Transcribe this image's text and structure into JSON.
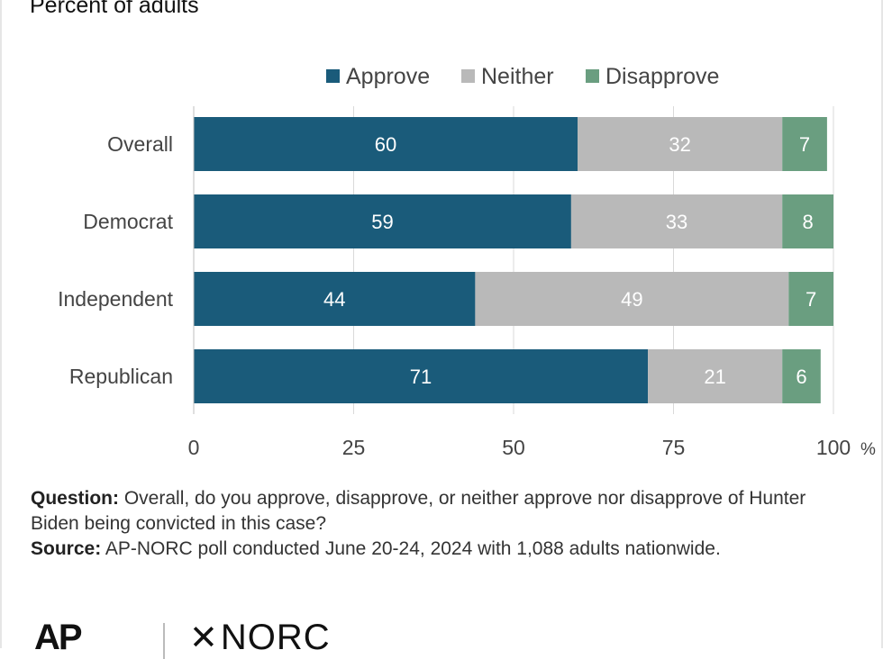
{
  "header": {
    "subtitle": "Percent of adults"
  },
  "chart_data": {
    "type": "bar",
    "orientation": "horizontal",
    "stacked": true,
    "categories": [
      "Overall",
      "Democrat",
      "Independent",
      "Republican"
    ],
    "series": [
      {
        "name": "Approve",
        "color": "#1a5b7a",
        "values": [
          60,
          59,
          44,
          71
        ]
      },
      {
        "name": "Neither",
        "color": "#b9b9b9",
        "values": [
          32,
          33,
          49,
          21
        ]
      },
      {
        "name": "Disapprove",
        "color": "#6a9e80",
        "values": [
          7,
          8,
          7,
          6
        ]
      }
    ],
    "xlim": [
      0,
      100
    ],
    "xticks": [
      0,
      25,
      50,
      75,
      100
    ],
    "x_unit": "%",
    "grid": true,
    "legend_position": "top"
  },
  "notes": {
    "question_label": "Question:",
    "question_text": "Overall, do you approve, disapprove, or neither approve nor disapprove of Hunter Biden being convicted in this case?",
    "source_label": "Source:",
    "source_text": "AP-NORC poll conducted June 20-24, 2024 with 1,088 adults nationwide."
  },
  "logos": {
    "ap": "AP",
    "norc": "NORC",
    "norc_mark": "✕"
  }
}
